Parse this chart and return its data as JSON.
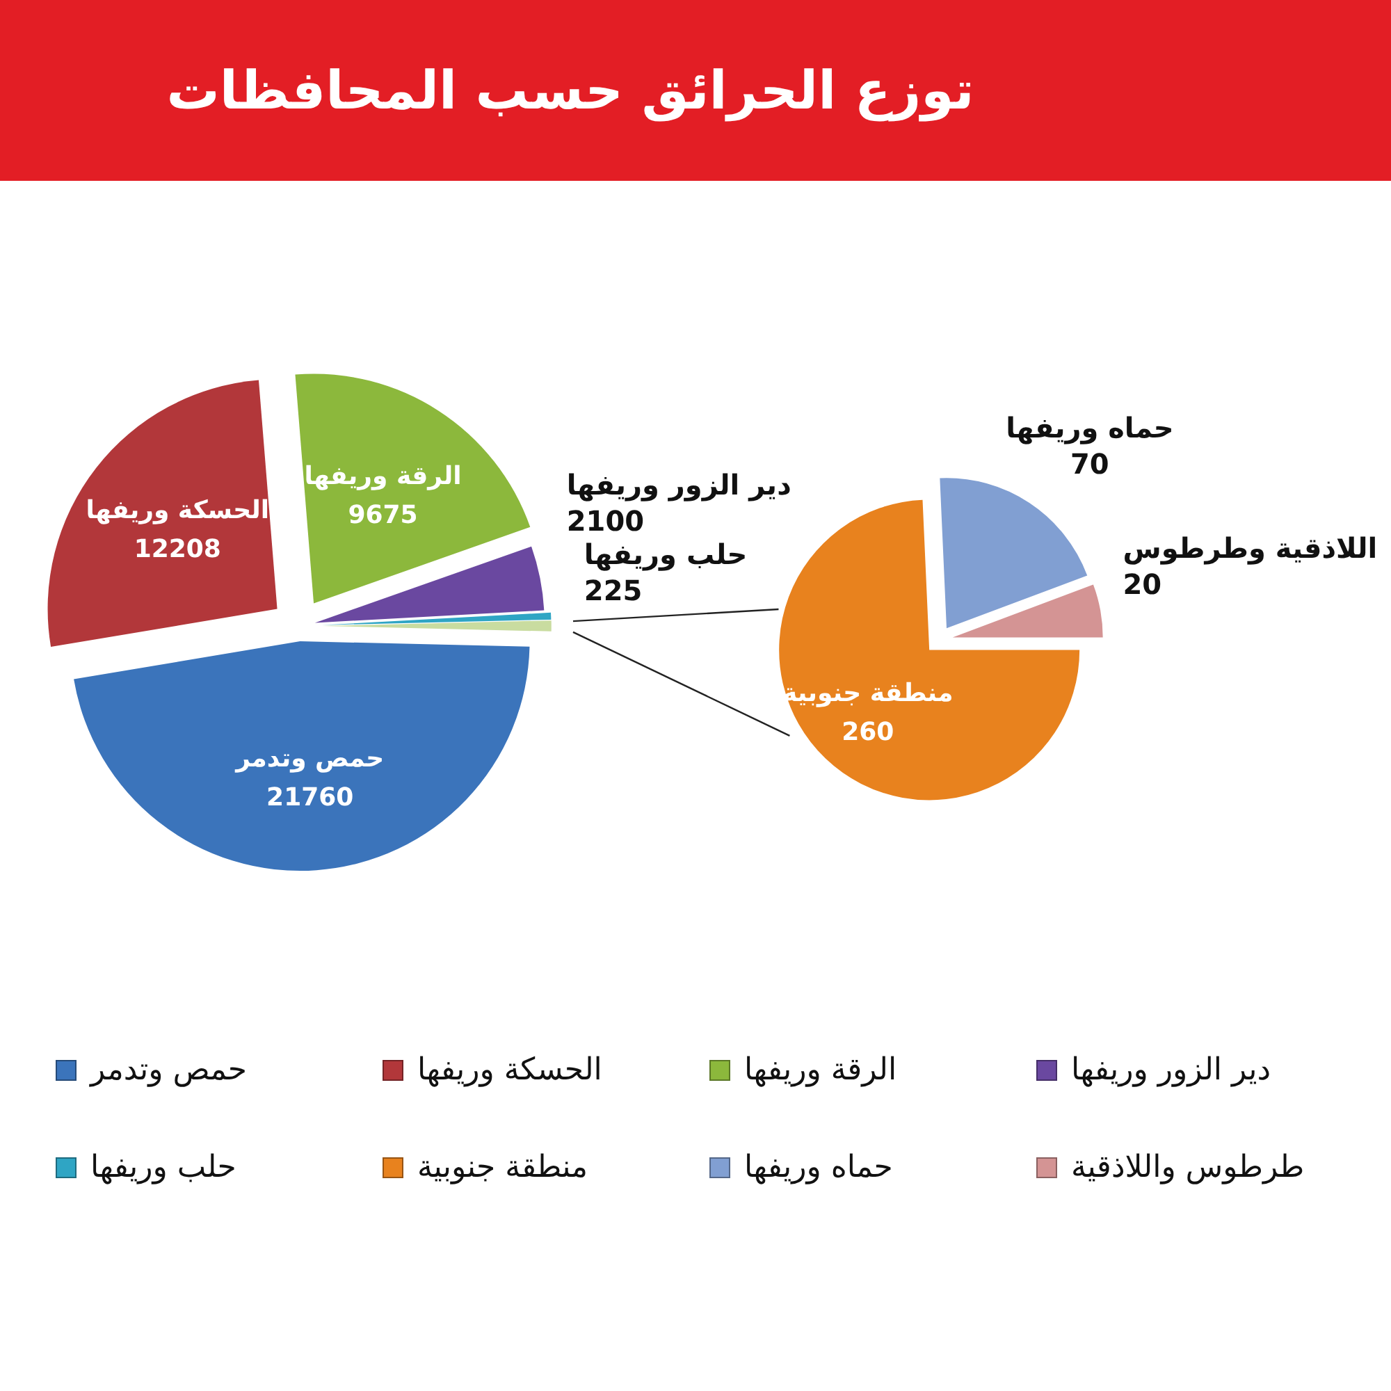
{
  "chart_data": [
    {
      "type": "pie",
      "title": "توزع الحرائق حسب المحافظات",
      "categories": [
        "حمص وتدمر",
        "الحسكة وريفها",
        "الرقة وريفها",
        "دير الزور وريفها",
        "حلب وريفها",
        null
      ],
      "values": [
        21760,
        12208,
        9675,
        2100,
        225,
        350
      ],
      "colors": [
        "#3b74bb",
        "#b2373a",
        "#8cb83c",
        "#6a48a0",
        "#2fa5c4",
        "#c9dca0"
      ],
      "value_labels": [
        "21760",
        "12208",
        "9675",
        "2100",
        "225",
        null
      ],
      "annotations": [
        "حمص وتدمر",
        "الحسكة وريفها",
        "الرقة وريفها",
        "دير الزور وريفها",
        "حلب وريفها"
      ],
      "legend": "bottom"
    },
    {
      "type": "pie",
      "categories": [
        "منطقة جنوبية",
        "حماه وريفها",
        "طرطوس واللاذقية"
      ],
      "values": [
        260,
        70,
        20
      ],
      "colors": [
        "#e8821e",
        "#819fd2",
        "#d49494"
      ],
      "data_labels": true,
      "annotations": [
        "منطقة جنوبية",
        "حماه وريفها",
        "اللاذقية وطرطوس"
      ],
      "legend": "bottom"
    }
  ]
}
